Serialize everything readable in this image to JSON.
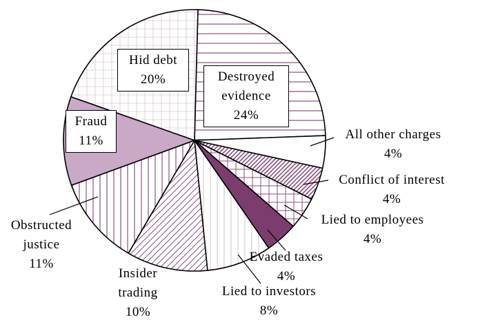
{
  "chart_data": {
    "type": "pie",
    "categories": [
      "Destroyed evidence",
      "All other charges",
      "Conflict of interest",
      "Lied to employees",
      "Evaded taxes",
      "Lied to investors",
      "Insider trading",
      "Obstructed justice",
      "Fraud",
      "Hid debt"
    ],
    "values": [
      24,
      4,
      4,
      4,
      4,
      8,
      10,
      11,
      11,
      20
    ],
    "value_labels": [
      "24%",
      "4%",
      "4%",
      "4%",
      "4%",
      "8%",
      "10%",
      "11%",
      "11%",
      "20%"
    ],
    "colors": [
      "#8a4f80",
      "#ffffff",
      "#8a4f80",
      "#8a4f80",
      "#7a3d6e",
      "#8a4f80",
      "#8a4f80",
      "#8a4f80",
      "#c9a9c5",
      "#8a4f80"
    ]
  }
}
